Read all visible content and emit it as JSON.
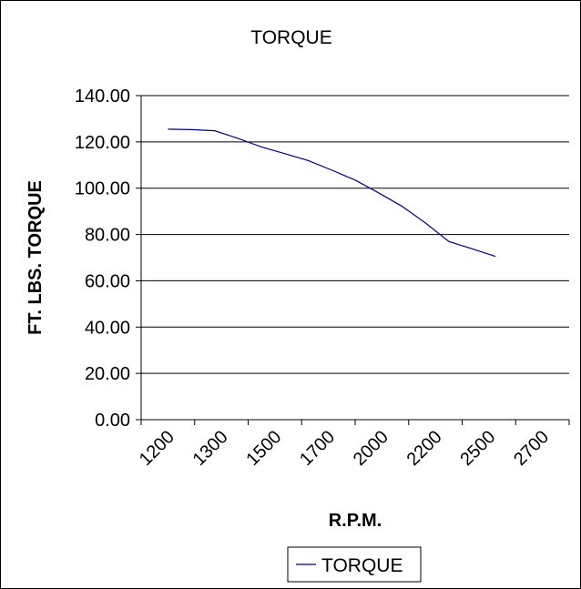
{
  "chart_data": {
    "type": "line",
    "title": "TORQUE",
    "xlabel": "R.P.M.",
    "ylabel": "FT. LBS. TORQUE",
    "categories": [
      "1200",
      "1300",
      "1500",
      "1700",
      "2000",
      "2200",
      "2500",
      "2700"
    ],
    "ylim": [
      0,
      140
    ],
    "yticks": [
      "0.00",
      "20.00",
      "40.00",
      "60.00",
      "80.00",
      "100.00",
      "120.00",
      "140.00"
    ],
    "series": [
      {
        "name": "TORQUE",
        "color": "#000080",
        "x": [
          1200,
          1300,
          1400,
          1500,
          1600,
          1700,
          1800,
          1900,
          2000,
          2100,
          2200,
          2300,
          2400,
          2500,
          2600,
          2700,
          2800
        ],
        "values": [
          125.5,
          125.3,
          124.8,
          121.5,
          117.8,
          114.9,
          111.9,
          107.8,
          103.5,
          98.0,
          92.2,
          85.0,
          77.0,
          73.8,
          70.5,
          null,
          null
        ]
      }
    ],
    "grid": "horizontal",
    "legend": "bottom"
  }
}
